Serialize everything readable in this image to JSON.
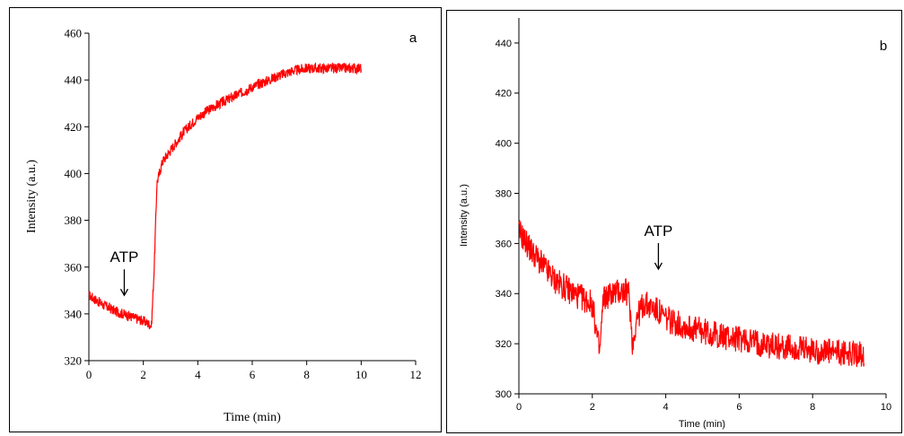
{
  "colors": {
    "trace": "#ff0000",
    "axis": "#000000"
  },
  "chart_data": [
    {
      "type": "line",
      "panel_label": "a",
      "xlabel": "Time (min)",
      "ylabel": "Intensity (a.u.)",
      "xlim": [
        0,
        12
      ],
      "ylim": [
        320,
        460
      ],
      "x_ticks": [
        "0",
        "2",
        "4",
        "6",
        "8",
        "10",
        "12"
      ],
      "y_ticks": [
        "320",
        "340",
        "360",
        "380",
        "400",
        "420",
        "440",
        "460"
      ],
      "annotation": {
        "text": "ATP",
        "x": 1.3,
        "y": 346
      },
      "series": [
        {
          "x": [
            0,
            0.5,
            1.0,
            1.5,
            2.0,
            2.3,
            2.4,
            2.5,
            2.7,
            3.0,
            3.5,
            4.0,
            4.5,
            5.0,
            6.0,
            7.0,
            7.5,
            8.0,
            9.0,
            10.0
          ],
          "y": [
            348,
            344,
            341,
            339,
            337,
            335,
            360,
            396,
            405,
            410,
            418,
            424,
            428,
            431,
            437,
            442,
            444,
            445,
            445,
            445
          ]
        }
      ]
    },
    {
      "type": "line",
      "panel_label": "b",
      "xlabel": "Time (min)",
      "ylabel": "Intensity (a.u.)",
      "xlim": [
        0,
        10
      ],
      "ylim": [
        300,
        450
      ],
      "x_ticks": [
        "0",
        "2",
        "4",
        "6",
        "8",
        "10"
      ],
      "y_ticks": [
        "300",
        "320",
        "340",
        "360",
        "380",
        "400",
        "420",
        "440"
      ],
      "annotation": {
        "text": "ATP",
        "x": 3.8,
        "y": 348
      },
      "series": [
        {
          "x": [
            0,
            0.3,
            0.6,
            1.0,
            1.5,
            2.0,
            2.2,
            2.3,
            2.5,
            2.8,
            3.0,
            3.1,
            3.2,
            3.4,
            3.7,
            4.0,
            4.5,
            5.0,
            5.5,
            6.0,
            7.0,
            8.0,
            9.0,
            9.4
          ],
          "y": [
            365,
            358,
            352,
            345,
            340,
            336,
            316,
            338,
            340,
            341,
            340,
            319,
            330,
            336,
            334,
            330,
            327,
            325,
            323,
            322,
            319,
            317,
            316,
            316
          ]
        }
      ]
    }
  ]
}
